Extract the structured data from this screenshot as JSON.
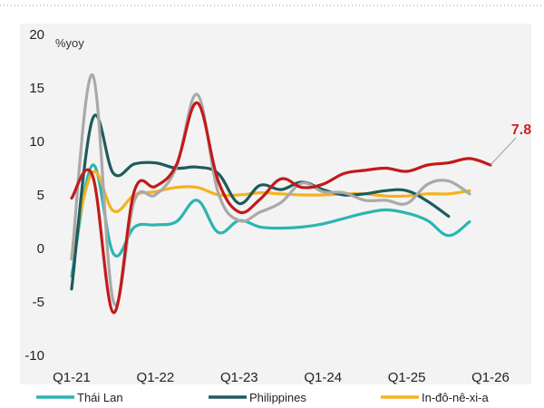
{
  "chart_data": {
    "type": "line",
    "title": "",
    "xlabel": "",
    "ylabel": "",
    "unit_label": "%yoy",
    "ylim": [
      -10,
      20
    ],
    "y_ticks": [
      20,
      15,
      10,
      5,
      0,
      -5,
      -10
    ],
    "x_ticks": [
      "Q1-21",
      "Q1-22",
      "Q1-23",
      "Q1-24",
      "Q1-25",
      "Q1-26"
    ],
    "x_tick_positions": [
      0,
      4,
      8,
      12,
      16,
      20
    ],
    "grid": false,
    "legend_position": "bottom",
    "series": [
      {
        "name": "Thái Lan",
        "color": "#2CB5B0",
        "in_legend": true,
        "values": [
          -2.6,
          7.8,
          -0.5,
          2.0,
          2.2,
          2.5,
          4.5,
          1.5,
          2.6,
          2.0,
          1.9,
          2.0,
          2.3,
          2.8,
          3.3,
          3.6,
          3.3,
          2.6,
          1.2,
          2.5
        ]
      },
      {
        "name": "Philippines",
        "color": "#1E5B5E",
        "in_legend": true,
        "values": [
          -3.8,
          12.1,
          7.0,
          7.9,
          8.0,
          7.5,
          7.6,
          7.0,
          4.2,
          5.9,
          5.5,
          6.2,
          5.5,
          5.0,
          5.1,
          5.4,
          5.4,
          4.4,
          3.0
        ]
      },
      {
        "name": "In-đô-nê-xi-a",
        "color": "#F5B21C",
        "in_legend": true,
        "values": [
          -0.7,
          7.1,
          3.5,
          5.0,
          5.3,
          5.7,
          5.7,
          5.0,
          5.0,
          5.2,
          5.1,
          5.0,
          5.0,
          5.1,
          5.1,
          4.9,
          4.9,
          5.1,
          5.1,
          5.4
        ]
      },
      {
        "name": "",
        "color": "#C21A1A",
        "in_legend": false,
        "values": [
          4.7,
          6.8,
          -6.0,
          5.4,
          5.8,
          7.8,
          13.6,
          6.3,
          3.4,
          4.6,
          6.5,
          5.7,
          6.0,
          7.0,
          7.3,
          7.5,
          7.2,
          7.8,
          8.0,
          8.4,
          7.8
        ]
      },
      {
        "name": "",
        "color": "#A9A9A9",
        "in_legend": false,
        "values": [
          -1.0,
          16.2,
          -5.0,
          4.5,
          5.0,
          7.6,
          14.4,
          5.2,
          2.6,
          3.4,
          4.3,
          6.1,
          5.3,
          5.2,
          4.5,
          4.5,
          4.2,
          6.0,
          6.3,
          5.1
        ]
      }
    ],
    "annotations": [
      {
        "text": "7.8",
        "color": "#D21F26",
        "series_index": 3,
        "point_index": 20
      }
    ]
  }
}
